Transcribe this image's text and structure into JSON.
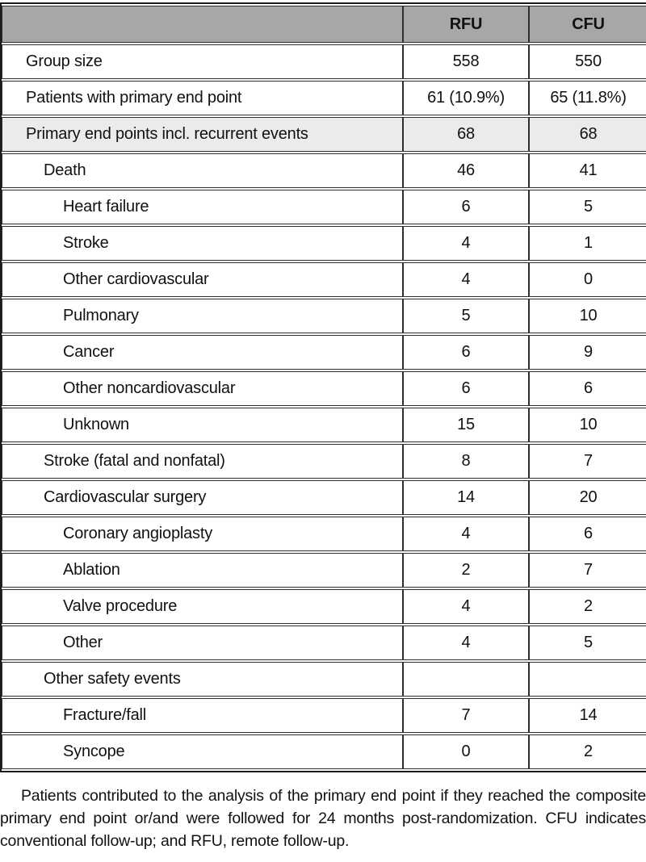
{
  "table": {
    "header": {
      "label_col": "",
      "rfu": "RFU",
      "cfu": "CFU"
    },
    "rows": [
      {
        "label": "Group size",
        "rfu": "558",
        "cfu": "550",
        "indent": 0,
        "shaded": false
      },
      {
        "label": "Patients with primary end point",
        "rfu": "61 (10.9%)",
        "cfu": "65 (11.8%)",
        "indent": 0,
        "shaded": false
      },
      {
        "label": "Primary end points incl. recurrent events",
        "rfu": "68",
        "cfu": "68",
        "indent": 0,
        "shaded": true
      },
      {
        "label": "Death",
        "rfu": "46",
        "cfu": "41",
        "indent": 1,
        "shaded": false
      },
      {
        "label": "Heart failure",
        "rfu": "6",
        "cfu": "5",
        "indent": 2,
        "shaded": false
      },
      {
        "label": "Stroke",
        "rfu": "4",
        "cfu": "1",
        "indent": 2,
        "shaded": false
      },
      {
        "label": "Other cardiovascular",
        "rfu": "4",
        "cfu": "0",
        "indent": 2,
        "shaded": false
      },
      {
        "label": "Pulmonary",
        "rfu": "5",
        "cfu": "10",
        "indent": 2,
        "shaded": false
      },
      {
        "label": "Cancer",
        "rfu": "6",
        "cfu": "9",
        "indent": 2,
        "shaded": false
      },
      {
        "label": "Other noncardiovascular",
        "rfu": "6",
        "cfu": "6",
        "indent": 2,
        "shaded": false
      },
      {
        "label": "Unknown",
        "rfu": "15",
        "cfu": "10",
        "indent": 2,
        "shaded": false
      },
      {
        "label": "Stroke (fatal and nonfatal)",
        "rfu": "8",
        "cfu": "7",
        "indent": 1,
        "shaded": false
      },
      {
        "label": "Cardiovascular surgery",
        "rfu": "14",
        "cfu": "20",
        "indent": 1,
        "shaded": false
      },
      {
        "label": "Coronary angioplasty",
        "rfu": "4",
        "cfu": "6",
        "indent": 2,
        "shaded": false
      },
      {
        "label": "Ablation",
        "rfu": "2",
        "cfu": "7",
        "indent": 2,
        "shaded": false
      },
      {
        "label": "Valve procedure",
        "rfu": "4",
        "cfu": "2",
        "indent": 2,
        "shaded": false
      },
      {
        "label": "Other",
        "rfu": "4",
        "cfu": "5",
        "indent": 2,
        "shaded": false
      },
      {
        "label": "Other safety events",
        "rfu": "",
        "cfu": "",
        "indent": 1,
        "shaded": false
      },
      {
        "label": "Fracture/fall",
        "rfu": "7",
        "cfu": "14",
        "indent": 2,
        "shaded": false
      },
      {
        "label": "Syncope",
        "rfu": "0",
        "cfu": "2",
        "indent": 2,
        "shaded": false
      }
    ]
  },
  "footnote": "Patients contributed to the analysis of the primary end point if they reached the composite primary end point or/and were followed for 24 months post-randomization. CFU indicates conventional follow-up; and RFU, remote follow-up.",
  "colors": {
    "header_bg": "#a7a7a7",
    "shaded_row_bg": "#ebebeb",
    "cell_border": "#2e2e2e",
    "outer_border": "#1c1c1c",
    "text": "#111111"
  }
}
